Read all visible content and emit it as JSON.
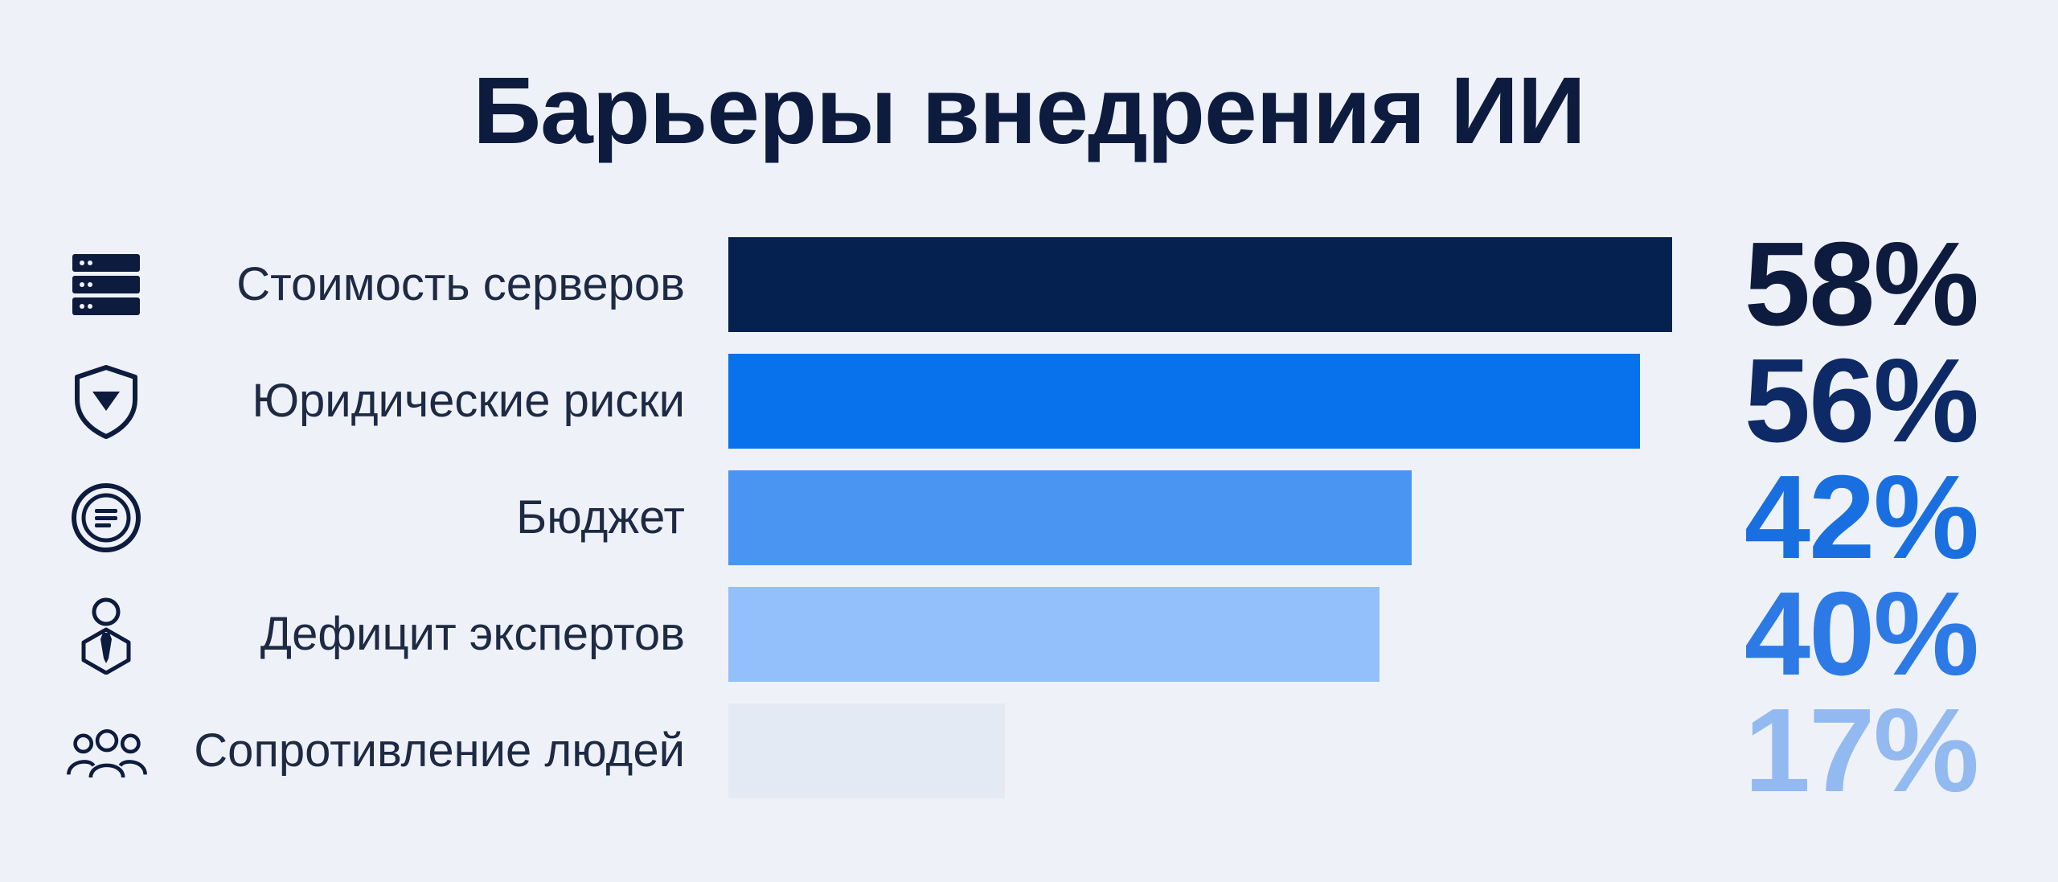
{
  "title": "Барьеры внедрения ИИ",
  "chart_data": {
    "type": "bar",
    "orientation": "horizontal",
    "title": "Барьеры внедрения ИИ",
    "xlabel": "",
    "ylabel": "",
    "xlim": [
      0,
      58
    ],
    "grid": false,
    "legend": "none",
    "categories": [
      "Стоимость серверов",
      "Юридические риски",
      "Бюджет",
      "Дефицит экспертов",
      "Сопротивление людей"
    ],
    "values": [
      58,
      56,
      42,
      40,
      17
    ],
    "value_labels": [
      "58%",
      "56%",
      "42%",
      "40%",
      "17%"
    ],
    "icons": [
      "server-icon",
      "shield-icon",
      "coin-icon",
      "expert-icon",
      "people-icon"
    ],
    "bar_colors": [
      "#04214f",
      "#0872ec",
      "#4a94f2",
      "#93c0fa",
      "#e3eaf4"
    ],
    "value_colors": [
      "#0d1b3e",
      "#0e2a66",
      "#1a6fe0",
      "#2d7ae6",
      "#93baf0"
    ]
  }
}
